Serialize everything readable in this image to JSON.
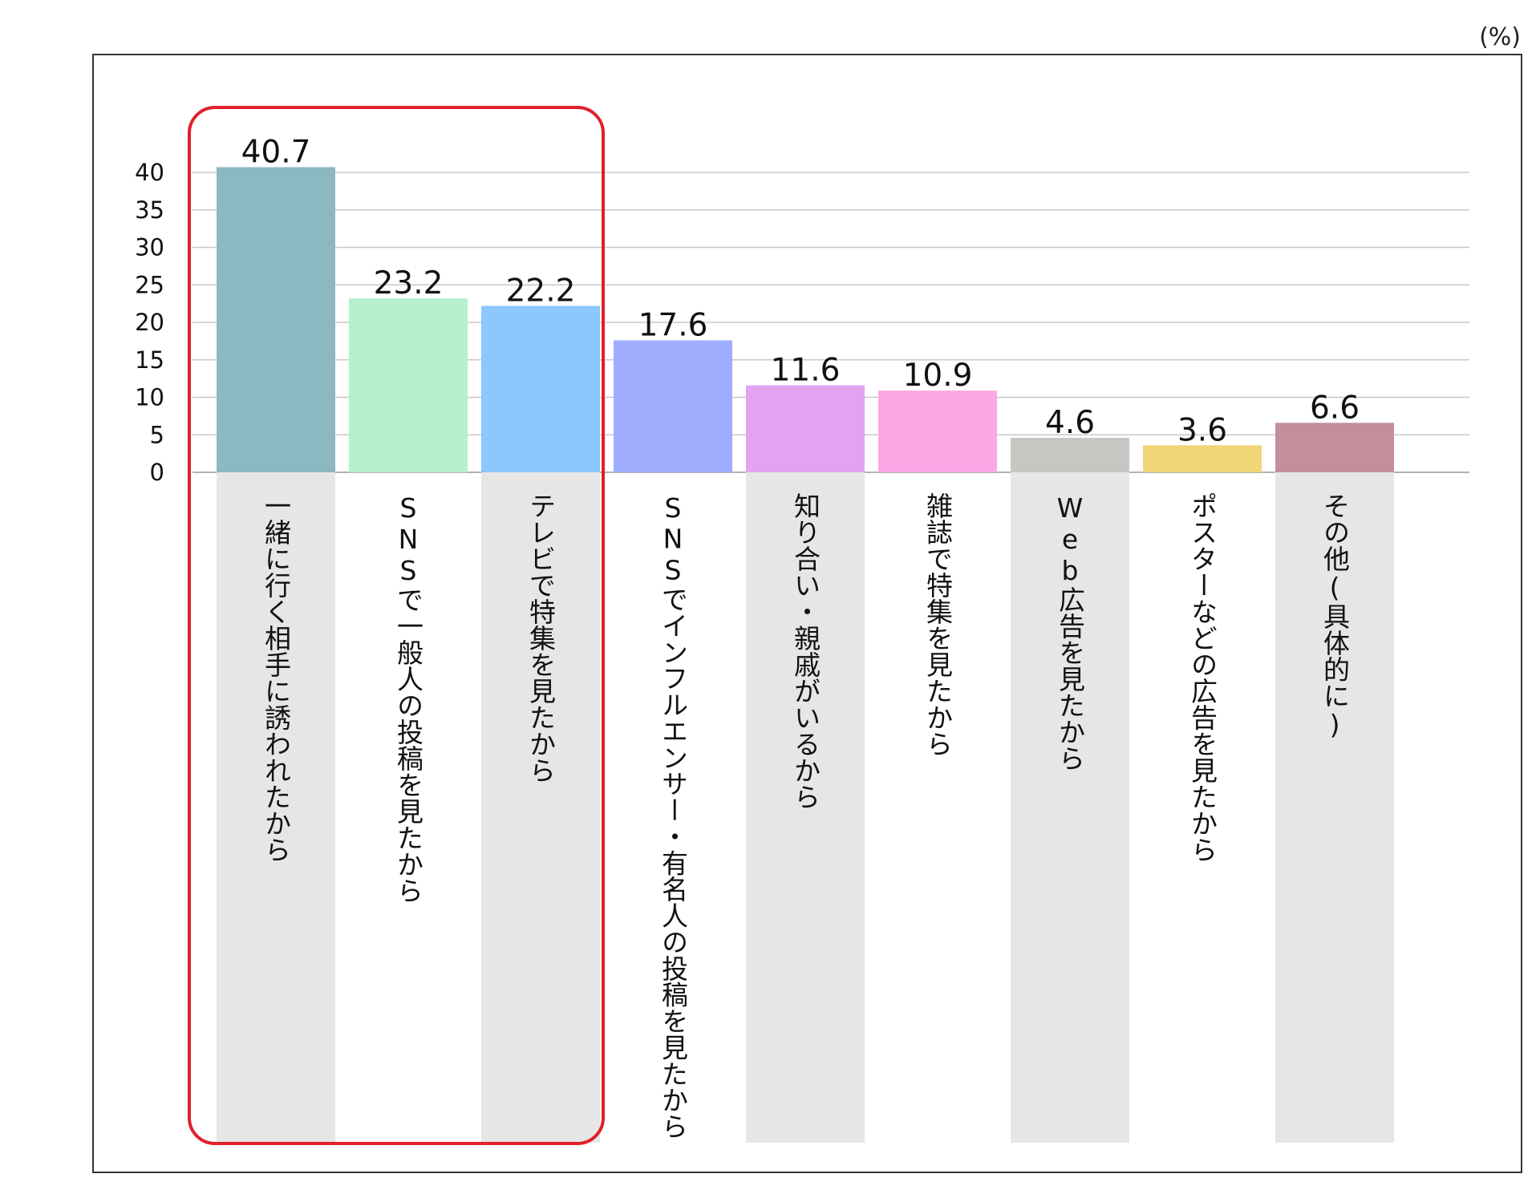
{
  "chart_data": {
    "type": "bar",
    "unit_label": "(%)",
    "categories": [
      "一緒に行く相手に誘われたから",
      "SNSで一般人の投稿を見たから",
      "テレビで特集を見たから",
      "SNSでインフルエンサー・有名人の投稿を見たから",
      "知り合い・親戚がいるから",
      "雑誌で特集を見たから",
      "Web広告を見たから",
      "ポスターなどの広告を見たから",
      "その他(具体的に)"
    ],
    "values": [
      40.7,
      23.2,
      22.2,
      17.6,
      11.6,
      10.9,
      4.6,
      3.6,
      6.6
    ],
    "value_labels": [
      "40.7",
      "23.2",
      "22.2",
      "17.6",
      "11.6",
      "10.9",
      "4.6",
      "3.6",
      "6.6"
    ],
    "colors": [
      "#8cb8c2",
      "#b4f1cc",
      "#8bc8fe",
      "#9eadfe",
      "#e2a3f3",
      "#fca8e6",
      "#c5c7c3",
      "#f1d677",
      "#c48f9a"
    ],
    "ylim": [
      0,
      40
    ],
    "yticks": [
      "0",
      "5",
      "10",
      "15",
      "20",
      "25",
      "30",
      "35",
      "40"
    ],
    "grid": true,
    "highlight": {
      "categories": [
        0,
        1,
        2
      ],
      "color": "#e0202a"
    },
    "label_band_color": "#e6e6e6",
    "grid_color": "#c8c8c8",
    "frame_color": "#333333"
  }
}
